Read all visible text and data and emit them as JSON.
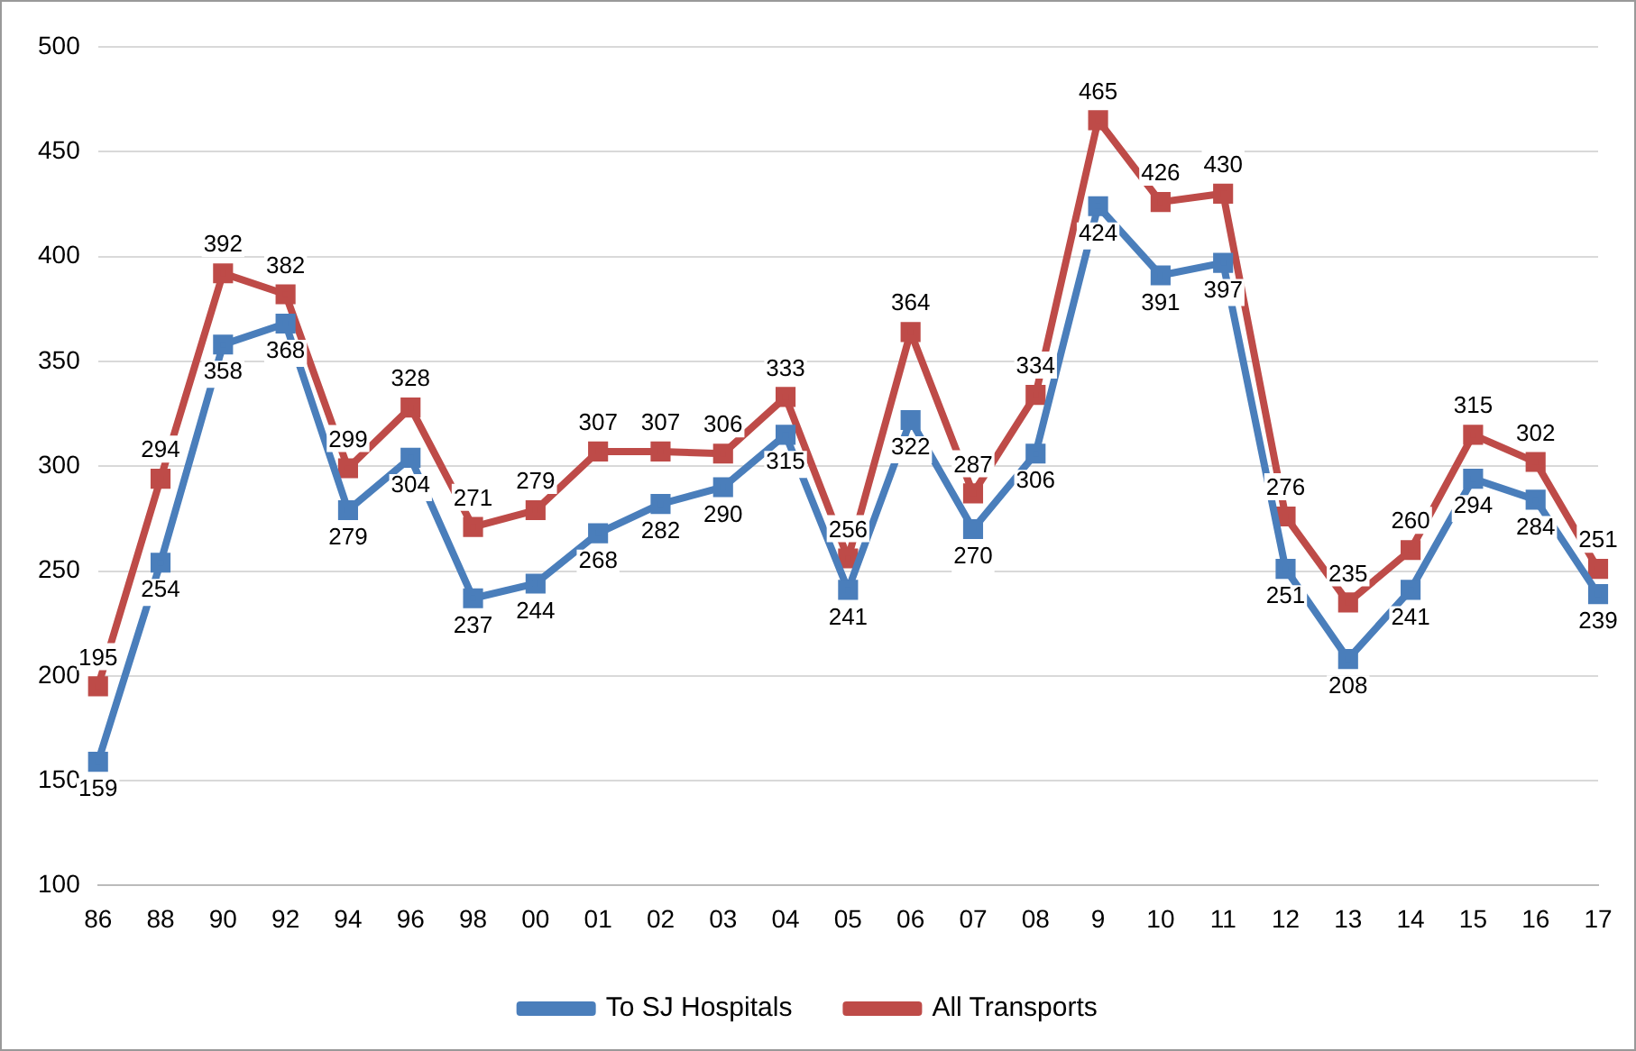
{
  "chart_data": {
    "type": "line",
    "categories": [
      "86",
      "88",
      "90",
      "92",
      "94",
      "96",
      "98",
      "00",
      "01",
      "02",
      "03",
      "04",
      "05",
      "06",
      "07",
      "08",
      "9",
      "10",
      "11",
      "12",
      "13",
      "14",
      "15",
      "16",
      "17"
    ],
    "series": [
      {
        "name": "To SJ Hospitals",
        "color": "#4a7ebb",
        "values": [
          159,
          254,
          358,
          368,
          279,
          304,
          237,
          244,
          268,
          282,
          290,
          315,
          241,
          322,
          270,
          306,
          424,
          391,
          397,
          251,
          208,
          241,
          294,
          284,
          239
        ]
      },
      {
        "name": "All Transports",
        "color": "#be4b48",
        "values": [
          195,
          294,
          392,
          382,
          299,
          328,
          271,
          279,
          307,
          307,
          306,
          333,
          256,
          364,
          287,
          334,
          465,
          426,
          430,
          276,
          235,
          260,
          315,
          302,
          251
        ]
      }
    ],
    "ylim": [
      100,
      500
    ],
    "yticks": [
      100,
      150,
      200,
      250,
      300,
      350,
      400,
      450,
      500
    ],
    "grid": "y",
    "legend": "bottom",
    "marker": "square",
    "line_style": "solid",
    "data_labels": true
  }
}
